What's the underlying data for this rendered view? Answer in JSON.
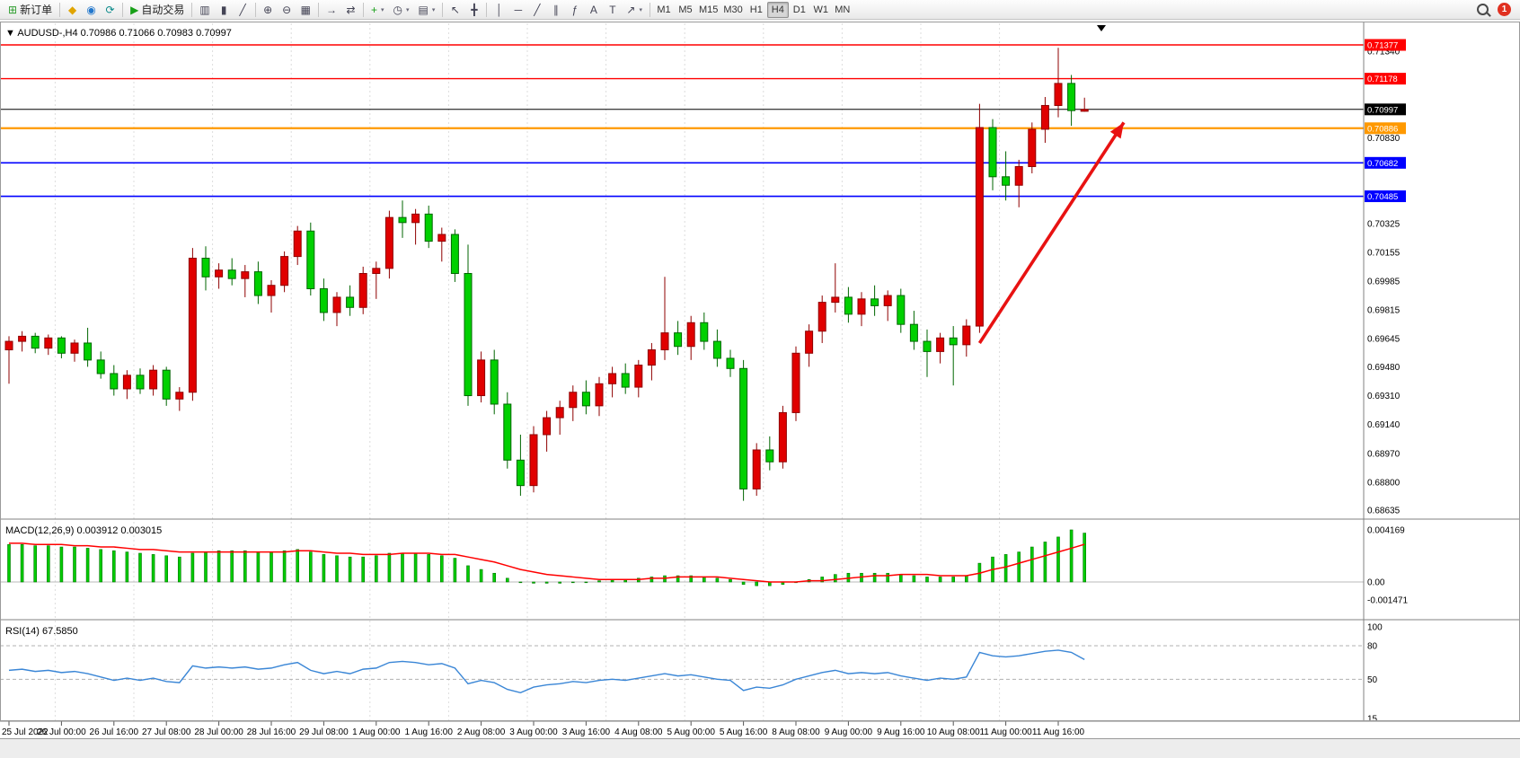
{
  "toolbar": {
    "groups": [
      {
        "items": [
          {
            "name": "new-order",
            "icon": "⊞",
            "icon_color": "#2e9e2e",
            "label": "新订单",
            "caret": false
          }
        ]
      },
      {
        "items": [
          {
            "name": "mql5-market",
            "icon": "◆",
            "icon_color": "#e0a400"
          },
          {
            "name": "community",
            "icon": "◉",
            "icon_color": "#2277cc"
          },
          {
            "name": "refresh",
            "icon": "⟳",
            "icon_color": "#0a8a8a"
          }
        ]
      },
      {
        "items": [
          {
            "name": "auto-trading",
            "icon": "▶",
            "icon_color": "#18a018",
            "label": "自动交易"
          }
        ]
      },
      {
        "items": [
          {
            "name": "chart-bars",
            "icon": "▥"
          },
          {
            "name": "chart-candles",
            "icon": "▮"
          },
          {
            "name": "chart-line",
            "icon": "╱"
          }
        ]
      },
      {
        "items": [
          {
            "name": "zoom-in",
            "icon": "⊕"
          },
          {
            "name": "zoom-out",
            "icon": "⊖"
          },
          {
            "name": "tile-windows",
            "icon": "▦"
          }
        ]
      },
      {
        "items": [
          {
            "name": "auto-scroll",
            "icon": "→"
          },
          {
            "name": "chart-shift",
            "icon": "⇄"
          }
        ]
      },
      {
        "items": [
          {
            "name": "indicators",
            "icon": "+",
            "icon_color": "#18a018",
            "caret": true
          },
          {
            "name": "periods",
            "icon": "◷",
            "caret": true
          },
          {
            "name": "templates",
            "icon": "▤",
            "caret": true
          }
        ]
      },
      {
        "items": [
          {
            "name": "cursor",
            "icon": "↖"
          },
          {
            "name": "crosshair",
            "icon": "╋"
          }
        ]
      },
      {
        "items": [
          {
            "name": "draw-vline",
            "icon": "│"
          },
          {
            "name": "draw-hline",
            "icon": "─"
          },
          {
            "name": "draw-trendline",
            "icon": "╱"
          },
          {
            "name": "draw-channel",
            "icon": "∥"
          },
          {
            "name": "draw-fibonacci",
            "icon": "ƒ"
          },
          {
            "name": "draw-text",
            "icon": "A"
          },
          {
            "name": "draw-label",
            "icon": "T"
          },
          {
            "name": "draw-arrows",
            "icon": "↗",
            "caret": true
          }
        ]
      }
    ],
    "timeframes": [
      "M1",
      "M5",
      "M15",
      "M30",
      "H1",
      "H4",
      "D1",
      "W1",
      "MN"
    ],
    "active_timeframe": "H4",
    "notification_count": "1"
  },
  "chart_data": [
    {
      "type": "candlestick",
      "symbol": "AUDUSD-",
      "timeframe": "H4",
      "ohlc": {
        "open": "0.70986",
        "high": "0.71066",
        "low": "0.70983",
        "close": "0.70997"
      },
      "bull_color": "#e00000",
      "bear_color": "#00d000",
      "x_labels": [
        "25 Jul 2022",
        "26 Jul 00:00",
        "26 Jul 16:00",
        "27 Jul 08:00",
        "28 Jul 00:00",
        "28 Jul 16:00",
        "29 Jul 08:00",
        "1 Aug 00:00",
        "1 Aug 16:00",
        "2 Aug 08:00",
        "3 Aug 00:00",
        "3 Aug 16:00",
        "4 Aug 08:00",
        "5 Aug 00:00",
        "5 Aug 16:00",
        "8 Aug 08:00",
        "9 Aug 00:00",
        "9 Aug 16:00",
        "10 Aug 08:00",
        "11 Aug 00:00",
        "11 Aug 16:00"
      ],
      "x_label_every": 4,
      "day_separator_bars": [
        4,
        10,
        16,
        22,
        28,
        34,
        40,
        46,
        52,
        58,
        64,
        70,
        76
      ],
      "price_axis_labels": [
        0.7134,
        0.7083,
        0.70325,
        0.70155,
        0.69985,
        0.69815,
        0.69645,
        0.6948,
        0.6931,
        0.6914,
        0.6897,
        0.688,
        0.68635
      ],
      "levels": [
        {
          "name": "resistance-line-1",
          "price": 0.71377,
          "color": "#ff0000",
          "width": 1.4
        },
        {
          "name": "resistance-line-2",
          "price": 0.71178,
          "color": "#ff0000",
          "width": 1.4
        },
        {
          "name": "current-price-line",
          "price": 0.70997,
          "color": "#000000",
          "width": 1
        },
        {
          "name": "pivot-line",
          "price": 0.70886,
          "color": "#ff9900",
          "width": 2.2
        },
        {
          "name": "support-line-1",
          "price": 0.70682,
          "color": "#0000ff",
          "width": 1.6
        },
        {
          "name": "support-line-2",
          "price": 0.70485,
          "color": "#0000ff",
          "width": 1.6
        }
      ],
      "annotation_arrow": {
        "from_bar": 74,
        "from_price": 0.6962,
        "to_bar": 85,
        "to_price": 0.7092,
        "color": "#e81212"
      },
      "candles": [
        [
          0.6958,
          0.6966,
          0.6938,
          0.6963
        ],
        [
          0.6963,
          0.6969,
          0.6957,
          0.6966
        ],
        [
          0.6966,
          0.6968,
          0.6956,
          0.6959
        ],
        [
          0.6959,
          0.6967,
          0.6955,
          0.6965
        ],
        [
          0.6965,
          0.6966,
          0.6953,
          0.6956
        ],
        [
          0.6956,
          0.6964,
          0.6951,
          0.6962
        ],
        [
          0.6962,
          0.6971,
          0.6948,
          0.6952
        ],
        [
          0.6952,
          0.6957,
          0.6941,
          0.6944
        ],
        [
          0.6944,
          0.6949,
          0.6931,
          0.6935
        ],
        [
          0.6935,
          0.6946,
          0.6929,
          0.6943
        ],
        [
          0.6943,
          0.6947,
          0.6932,
          0.6935
        ],
        [
          0.6935,
          0.6949,
          0.6931,
          0.6946
        ],
        [
          0.6946,
          0.6948,
          0.6925,
          0.6929
        ],
        [
          0.6929,
          0.6936,
          0.6922,
          0.6933
        ],
        [
          0.6933,
          0.7018,
          0.6928,
          0.7012
        ],
        [
          0.7012,
          0.7019,
          0.6993,
          0.7001
        ],
        [
          0.7001,
          0.7009,
          0.6994,
          0.7005
        ],
        [
          0.7005,
          0.7012,
          0.6996,
          0.7
        ],
        [
          0.7,
          0.7008,
          0.6989,
          0.7004
        ],
        [
          0.7004,
          0.701,
          0.6985,
          0.699
        ],
        [
          0.699,
          0.6999,
          0.698,
          0.6996
        ],
        [
          0.6996,
          0.7016,
          0.6992,
          0.7013
        ],
        [
          0.7013,
          0.7031,
          0.7008,
          0.7028
        ],
        [
          0.7028,
          0.7033,
          0.699,
          0.6994
        ],
        [
          0.6994,
          0.7,
          0.6975,
          0.698
        ],
        [
          0.698,
          0.6992,
          0.6972,
          0.6989
        ],
        [
          0.6989,
          0.6996,
          0.6978,
          0.6983
        ],
        [
          0.6983,
          0.7007,
          0.6979,
          0.7003
        ],
        [
          0.7003,
          0.701,
          0.6988,
          0.7006
        ],
        [
          0.7006,
          0.704,
          0.7,
          0.7036
        ],
        [
          0.7036,
          0.7046,
          0.7024,
          0.7033
        ],
        [
          0.7033,
          0.7041,
          0.702,
          0.7038
        ],
        [
          0.7038,
          0.7043,
          0.7018,
          0.7022
        ],
        [
          0.7022,
          0.703,
          0.701,
          0.7026
        ],
        [
          0.7026,
          0.7029,
          0.6998,
          0.7003
        ],
        [
          0.7003,
          0.702,
          0.6925,
          0.6931
        ],
        [
          0.6931,
          0.6957,
          0.6927,
          0.6952
        ],
        [
          0.6952,
          0.6958,
          0.692,
          0.6926
        ],
        [
          0.6926,
          0.6933,
          0.6888,
          0.6893
        ],
        [
          0.6893,
          0.6908,
          0.6872,
          0.6878
        ],
        [
          0.6878,
          0.6913,
          0.6874,
          0.6908
        ],
        [
          0.6908,
          0.6922,
          0.6898,
          0.6918
        ],
        [
          0.6918,
          0.6928,
          0.6908,
          0.6924
        ],
        [
          0.6924,
          0.6937,
          0.6916,
          0.6933
        ],
        [
          0.6933,
          0.694,
          0.692,
          0.6925
        ],
        [
          0.6925,
          0.6942,
          0.6919,
          0.6938
        ],
        [
          0.6938,
          0.6948,
          0.693,
          0.6944
        ],
        [
          0.6944,
          0.695,
          0.6932,
          0.6936
        ],
        [
          0.6936,
          0.6952,
          0.693,
          0.6949
        ],
        [
          0.6949,
          0.6962,
          0.694,
          0.6958
        ],
        [
          0.6958,
          0.7001,
          0.6952,
          0.6968
        ],
        [
          0.6968,
          0.6975,
          0.6955,
          0.696
        ],
        [
          0.696,
          0.6978,
          0.6952,
          0.6974
        ],
        [
          0.6974,
          0.698,
          0.6958,
          0.6963
        ],
        [
          0.6963,
          0.697,
          0.6948,
          0.6953
        ],
        [
          0.6953,
          0.6958,
          0.6942,
          0.6947
        ],
        [
          0.6947,
          0.6952,
          0.6869,
          0.6876
        ],
        [
          0.6876,
          0.6903,
          0.6872,
          0.6899
        ],
        [
          0.6899,
          0.6907,
          0.6887,
          0.6892
        ],
        [
          0.6892,
          0.6925,
          0.6888,
          0.6921
        ],
        [
          0.6921,
          0.696,
          0.6916,
          0.6956
        ],
        [
          0.6956,
          0.6973,
          0.6948,
          0.6969
        ],
        [
          0.6969,
          0.699,
          0.6962,
          0.6986
        ],
        [
          0.6986,
          0.7009,
          0.698,
          0.6989
        ],
        [
          0.6989,
          0.6995,
          0.6974,
          0.6979
        ],
        [
          0.6979,
          0.6992,
          0.6972,
          0.6988
        ],
        [
          0.6988,
          0.6996,
          0.6978,
          0.6984
        ],
        [
          0.6984,
          0.6993,
          0.6975,
          0.699
        ],
        [
          0.699,
          0.6994,
          0.6968,
          0.6973
        ],
        [
          0.6973,
          0.6981,
          0.6958,
          0.6963
        ],
        [
          0.6963,
          0.697,
          0.6942,
          0.6957
        ],
        [
          0.6957,
          0.6968,
          0.695,
          0.6965
        ],
        [
          0.6965,
          0.6972,
          0.6937,
          0.6961
        ],
        [
          0.6961,
          0.6976,
          0.6954,
          0.6972
        ],
        [
          0.6972,
          0.7103,
          0.6968,
          0.7089
        ],
        [
          0.7089,
          0.7094,
          0.7052,
          0.706
        ],
        [
          0.706,
          0.7075,
          0.7046,
          0.7055
        ],
        [
          0.7055,
          0.707,
          0.7042,
          0.7066
        ],
        [
          0.7066,
          0.7092,
          0.7062,
          0.7088
        ],
        [
          0.7088,
          0.7107,
          0.708,
          0.7102
        ],
        [
          0.7102,
          0.7136,
          0.7095,
          0.7115
        ],
        [
          0.7115,
          0.712,
          0.709,
          0.7099
        ],
        [
          0.70986,
          0.71066,
          0.70983,
          0.70997
        ]
      ]
    },
    {
      "type": "macd",
      "label": "MACD(12,26,9)",
      "main_value": "0.003912",
      "signal_value": "0.003015",
      "axis_labels": [
        "0.004169",
        "0.00",
        "-0.001471"
      ],
      "hist_color": "#00cc00",
      "signal_color": "#ff0000",
      "histogram": [
        0.003,
        0.003,
        0.0029,
        0.0029,
        0.0028,
        0.0028,
        0.0027,
        0.0026,
        0.0025,
        0.0024,
        0.0023,
        0.0022,
        0.0021,
        0.002,
        0.0023,
        0.0024,
        0.0025,
        0.0025,
        0.0025,
        0.0024,
        0.0024,
        0.0025,
        0.0026,
        0.0024,
        0.0022,
        0.0021,
        0.002,
        0.002,
        0.0021,
        0.0023,
        0.0023,
        0.0023,
        0.0022,
        0.0021,
        0.0019,
        0.0013,
        0.001,
        0.0007,
        0.0003,
        0.0,
        -0.0001,
        -0.0001,
        -0.0001,
        0.0,
        0.0,
        0.0001,
        0.0002,
        0.0002,
        0.0003,
        0.0004,
        0.0005,
        0.0005,
        0.0005,
        0.0004,
        0.0003,
        0.0002,
        -0.0002,
        -0.0003,
        -0.0003,
        -0.0002,
        0.0,
        0.0002,
        0.0004,
        0.0006,
        0.0007,
        0.0007,
        0.0007,
        0.0007,
        0.0006,
        0.0005,
        0.0004,
        0.0004,
        0.0004,
        0.0005,
        0.0015,
        0.002,
        0.0022,
        0.0024,
        0.0028,
        0.0032,
        0.0036,
        0.004169,
        0.003912
      ],
      "signal": [
        0.0031,
        0.0031,
        0.003,
        0.003,
        0.003,
        0.0029,
        0.0029,
        0.0028,
        0.0028,
        0.0027,
        0.0026,
        0.0026,
        0.0025,
        0.0024,
        0.0024,
        0.0024,
        0.0024,
        0.0024,
        0.0024,
        0.0024,
        0.0024,
        0.0024,
        0.0025,
        0.0025,
        0.0024,
        0.0023,
        0.0023,
        0.0022,
        0.0022,
        0.0022,
        0.0023,
        0.0023,
        0.0023,
        0.0022,
        0.0022,
        0.002,
        0.0018,
        0.0016,
        0.0013,
        0.001,
        0.0008,
        0.0006,
        0.0005,
        0.0004,
        0.0003,
        0.0002,
        0.0002,
        0.0002,
        0.0002,
        0.0003,
        0.0003,
        0.0004,
        0.0004,
        0.0004,
        0.0004,
        0.0003,
        0.0002,
        0.0001,
        0.0,
        0.0,
        0.0,
        0.0001,
        0.0001,
        0.0002,
        0.0003,
        0.0004,
        0.0005,
        0.0005,
        0.0006,
        0.0006,
        0.0006,
        0.0005,
        0.0005,
        0.0005,
        0.0007,
        0.001,
        0.0012,
        0.0015,
        0.0018,
        0.0021,
        0.0024,
        0.0027,
        0.003015
      ]
    },
    {
      "type": "rsi",
      "label": "RSI(14)",
      "value": "67.5850",
      "axis_labels": [
        "100",
        "80",
        "50",
        "15"
      ],
      "axis_values": [
        100,
        80,
        50,
        15
      ],
      "level_lines": [
        80,
        50
      ],
      "line_color": "#3a86d6",
      "series": [
        58,
        59,
        57,
        58,
        56,
        57,
        55,
        52,
        49,
        51,
        49,
        51,
        48,
        47,
        62,
        60,
        61,
        60,
        61,
        59,
        60,
        63,
        65,
        58,
        55,
        57,
        55,
        59,
        60,
        65,
        66,
        65,
        63,
        64,
        60,
        46,
        49,
        47,
        41,
        38,
        43,
        45,
        46,
        48,
        47,
        49,
        50,
        49,
        51,
        53,
        55,
        53,
        54,
        52,
        50,
        49,
        40,
        43,
        42,
        45,
        50,
        53,
        56,
        58,
        55,
        56,
        55,
        56,
        53,
        51,
        49,
        51,
        50,
        52,
        74,
        71,
        70,
        71,
        73,
        75,
        76,
        74,
        67.59
      ]
    }
  ]
}
